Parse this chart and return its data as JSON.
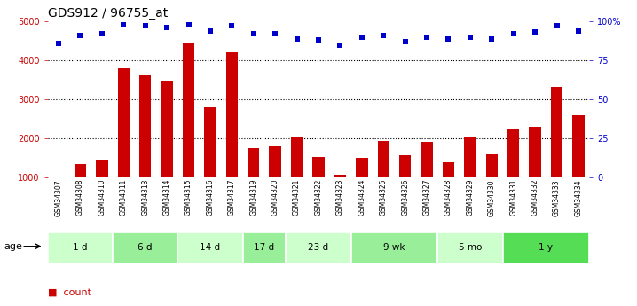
{
  "title": "GDS912 / 96755_at",
  "samples": [
    "GSM34307",
    "GSM34308",
    "GSM34310",
    "GSM34311",
    "GSM34313",
    "GSM34314",
    "GSM34315",
    "GSM34316",
    "GSM34317",
    "GSM34319",
    "GSM34320",
    "GSM34321",
    "GSM34322",
    "GSM34323",
    "GSM34324",
    "GSM34325",
    "GSM34326",
    "GSM34327",
    "GSM34328",
    "GSM34329",
    "GSM34330",
    "GSM34331",
    "GSM34332",
    "GSM34333",
    "GSM34334"
  ],
  "counts": [
    1020,
    1340,
    1460,
    3800,
    3650,
    3480,
    4430,
    2800,
    4200,
    1750,
    1790,
    2050,
    1530,
    1060,
    1510,
    1940,
    1560,
    1920,
    1380,
    2050,
    1590,
    2250,
    2300,
    3330,
    2590
  ],
  "percentiles": [
    86,
    91,
    92,
    98,
    97,
    96,
    98,
    94,
    97,
    92,
    92,
    89,
    88,
    85,
    90,
    91,
    87,
    90,
    89,
    90,
    89,
    92,
    93,
    97,
    94
  ],
  "groups": [
    {
      "label": "1 d",
      "start": 0,
      "end": 3,
      "color": "#ccffcc"
    },
    {
      "label": "6 d",
      "start": 3,
      "end": 6,
      "color": "#99ee99"
    },
    {
      "label": "14 d",
      "start": 6,
      "end": 9,
      "color": "#ccffcc"
    },
    {
      "label": "17 d",
      "start": 9,
      "end": 11,
      "color": "#99ee99"
    },
    {
      "label": "23 d",
      "start": 11,
      "end": 14,
      "color": "#ccffcc"
    },
    {
      "label": "9 wk",
      "start": 14,
      "end": 18,
      "color": "#99ee99"
    },
    {
      "label": "5 mo",
      "start": 18,
      "end": 21,
      "color": "#ccffcc"
    },
    {
      "label": "1 y",
      "start": 21,
      "end": 25,
      "color": "#55dd55"
    }
  ],
  "ylim_left": [
    1000,
    5000
  ],
  "ylim_right": [
    0,
    100
  ],
  "bar_color": "#cc0000",
  "scatter_color": "#0000cc",
  "tick_color_left": "#cc0000",
  "tick_color_right": "#0000cc",
  "bar_width": 0.55,
  "legend_count_color": "#cc0000",
  "legend_pct_color": "#0000cc",
  "group_font_size": 7.5,
  "sample_font_size": 5.5,
  "ytick_fontsize": 7,
  "title_fontsize": 10
}
